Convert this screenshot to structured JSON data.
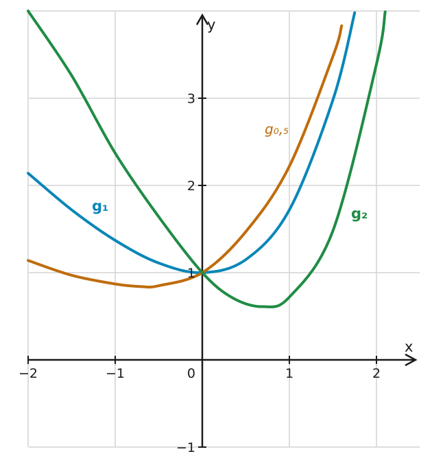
{
  "chart_data": {
    "type": "line",
    "xlabel": "x",
    "ylabel": "y",
    "xlim": [
      -2,
      2.5
    ],
    "ylim": [
      -1,
      4
    ],
    "grid": true,
    "x_ticks": [
      {
        "value": -2,
        "label": "−2"
      },
      {
        "value": -1,
        "label": "−1"
      },
      {
        "value": 1,
        "label": "1"
      },
      {
        "value": 2,
        "label": "2"
      }
    ],
    "y_ticks": [
      {
        "value": -1,
        "label": "−1"
      },
      {
        "value": 1,
        "label": "1"
      },
      {
        "value": 2,
        "label": "2"
      },
      {
        "value": 3,
        "label": "3"
      }
    ],
    "origin_label": "0",
    "series": [
      {
        "name": "g₁",
        "color": "#0a86b8",
        "x": [
          -2.0,
          -1.5,
          -1.0,
          -0.5,
          0.0,
          0.5,
          1.0,
          1.5,
          1.75
        ],
        "values": [
          2.14,
          1.72,
          1.37,
          1.11,
          1.0,
          1.15,
          1.72,
          2.98,
          3.98
        ]
      },
      {
        "name": "g₀,₅",
        "color": "#bf6c0d",
        "x": [
          -2.0,
          -1.5,
          -1.0,
          -0.7,
          -0.5,
          0.0,
          0.5,
          1.0,
          1.5,
          1.6
        ],
        "values": [
          1.14,
          0.97,
          0.87,
          0.84,
          0.85,
          1.0,
          1.47,
          2.22,
          3.48,
          3.83
        ]
      },
      {
        "name": "g₂",
        "color": "#1f8c44",
        "x": [
          -2.0,
          -1.5,
          -1.0,
          -0.5,
          0.0,
          0.35,
          0.7,
          1.0,
          1.5,
          2.0,
          2.1
        ],
        "values": [
          4.0,
          3.26,
          2.37,
          1.64,
          1.0,
          0.71,
          0.61,
          0.72,
          1.48,
          3.39,
          3.99
        ]
      }
    ]
  }
}
